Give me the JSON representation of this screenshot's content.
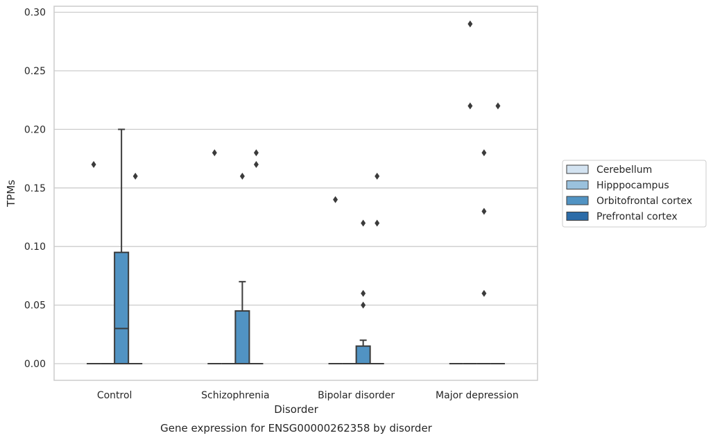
{
  "chart_data": {
    "type": "box",
    "xlabel": "Disorder",
    "ylabel": "TPMs",
    "caption": "Gene expression for ENSG00000262358 by disorder",
    "ylim": [
      -0.014,
      0.305
    ],
    "yticks": [
      "0.00",
      "0.05",
      "0.10",
      "0.15",
      "0.20",
      "0.25",
      "0.30"
    ],
    "ytick_values": [
      0.0,
      0.05,
      0.1,
      0.15,
      0.2,
      0.25,
      0.3
    ],
    "grid": "horizontal",
    "legend_position": "right",
    "categories": [
      "Control",
      "Schizophrenia",
      "Bipolar disorder",
      "Major depression"
    ],
    "series": [
      {
        "name": "Cerebellum",
        "color": "#d3e3f1",
        "boxes": [
          {
            "q1": 0,
            "median": 0,
            "q3": 0,
            "whisker_low": 0,
            "whisker_high": 0,
            "outliers": [
              0.17
            ]
          },
          {
            "q1": 0,
            "median": 0,
            "q3": 0,
            "whisker_low": 0,
            "whisker_high": 0,
            "outliers": [
              0.18
            ]
          },
          {
            "q1": 0,
            "median": 0,
            "q3": 0,
            "whisker_low": 0,
            "whisker_high": 0,
            "outliers": [
              0.14
            ]
          },
          {
            "q1": 0,
            "median": 0,
            "q3": 0,
            "whisker_low": 0,
            "whisker_high": 0,
            "outliers": []
          }
        ]
      },
      {
        "name": "Hipppocampus",
        "color": "#9ac1dd",
        "boxes": [
          {
            "q1": 0,
            "median": 0,
            "q3": 0,
            "whisker_low": 0,
            "whisker_high": 0,
            "outliers": []
          },
          {
            "q1": 0,
            "median": 0,
            "q3": 0,
            "whisker_low": 0,
            "whisker_high": 0,
            "outliers": []
          },
          {
            "q1": 0,
            "median": 0,
            "q3": 0,
            "whisker_low": 0,
            "whisker_high": 0,
            "outliers": []
          },
          {
            "q1": 0,
            "median": 0,
            "q3": 0,
            "whisker_low": 0,
            "whisker_high": 0,
            "outliers": [
              0.29,
              0.22
            ]
          }
        ]
      },
      {
        "name": "Orbitofrontal cortex",
        "color": "#5193c3",
        "boxes": [
          {
            "q1": 0,
            "median": 0.03,
            "q3": 0.095,
            "whisker_low": 0,
            "whisker_high": 0.2,
            "outliers": []
          },
          {
            "q1": 0,
            "median": 0,
            "q3": 0.045,
            "whisker_low": 0,
            "whisker_high": 0.07,
            "outliers": [
              0.16
            ]
          },
          {
            "q1": 0,
            "median": 0,
            "q3": 0.015,
            "whisker_low": 0,
            "whisker_high": 0.02,
            "outliers": [
              0.12,
              0.06,
              0.05
            ]
          },
          {
            "q1": 0,
            "median": 0,
            "q3": 0,
            "whisker_low": 0,
            "whisker_high": 0,
            "outliers": [
              0.18,
              0.13,
              0.06
            ]
          }
        ]
      },
      {
        "name": "Prefrontal cortex",
        "color": "#2c6ca8",
        "boxes": [
          {
            "q1": 0,
            "median": 0,
            "q3": 0,
            "whisker_low": 0,
            "whisker_high": 0,
            "outliers": [
              0.16
            ]
          },
          {
            "q1": 0,
            "median": 0,
            "q3": 0,
            "whisker_low": 0,
            "whisker_high": 0,
            "outliers": [
              0.18,
              0.17
            ]
          },
          {
            "q1": 0,
            "median": 0,
            "q3": 0,
            "whisker_low": 0,
            "whisker_high": 0,
            "outliers": [
              0.16,
              0.12
            ]
          },
          {
            "q1": 0,
            "median": 0,
            "q3": 0,
            "whisker_low": 0,
            "whisker_high": 0,
            "outliers": [
              0.22
            ]
          }
        ]
      }
    ]
  }
}
